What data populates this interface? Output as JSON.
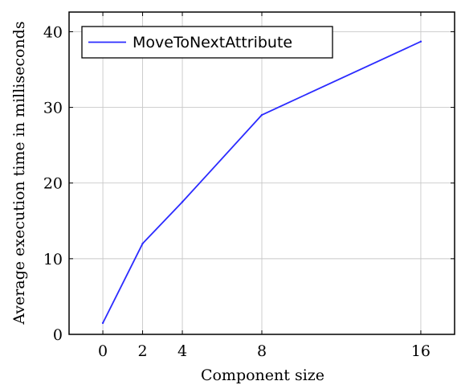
{
  "chart_data": {
    "type": "line",
    "x": [
      0,
      2,
      4,
      8,
      16
    ],
    "series": [
      {
        "name": "MoveToNextAttribute",
        "values": [
          1.5,
          12,
          17.5,
          29,
          38.7
        ]
      }
    ],
    "xlabel": "Component size",
    "ylabel": "Average execution time in milliseconds",
    "xticks": [
      "0",
      "2",
      "4",
      "8",
      "16"
    ],
    "yticks": [
      "0",
      "10",
      "20",
      "30",
      "40"
    ],
    "xlim": [
      -1.7,
      17.7
    ],
    "ylim": [
      0,
      42.6
    ],
    "grid": true,
    "legend_position": "top-left",
    "series_color": "#2b2bff"
  }
}
